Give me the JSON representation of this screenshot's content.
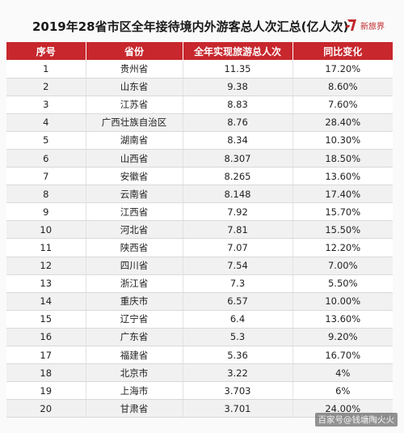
{
  "title": "2019年28省市区全年接待境内外游客总人次汇总(亿人次)",
  "logo_text": "新旅界",
  "headers": [
    "序号",
    "省份",
    "全年实现旅游总人次",
    "同比变化"
  ],
  "rows": [
    [
      "1",
      "贵州省",
      "11.35",
      "17.20%"
    ],
    [
      "2",
      "山东省",
      "9.38",
      "8.60%"
    ],
    [
      "3",
      "江苏省",
      "8.83",
      "7.60%"
    ],
    [
      "4",
      "广西壮族自治区",
      "8.76",
      "28.40%"
    ],
    [
      "5",
      "湖南省",
      "8.34",
      "10.30%"
    ],
    [
      "6",
      "山西省",
      "8.307",
      "18.50%"
    ],
    [
      "7",
      "安徽省",
      "8.265",
      "13.60%"
    ],
    [
      "8",
      "云南省",
      "8.148",
      "17.40%"
    ],
    [
      "9",
      "江西省",
      "7.92",
      "15.70%"
    ],
    [
      "10",
      "河北省",
      "7.81",
      "15.50%"
    ],
    [
      "11",
      "陕西省",
      "7.07",
      "12.20%"
    ],
    [
      "12",
      "四川省",
      "7.54",
      "7.00%"
    ],
    [
      "13",
      "浙江省",
      "7.3",
      "5.50%"
    ],
    [
      "14",
      "重庆市",
      "6.57",
      "10.00%"
    ],
    [
      "15",
      "辽宁省",
      "6.4",
      "13.60%"
    ],
    [
      "16",
      "广东省",
      "5.3",
      "9.20%"
    ],
    [
      "17",
      "福建省",
      "5.36",
      "16.70%"
    ],
    [
      "18",
      "北京市",
      "3.22",
      "4%"
    ],
    [
      "19",
      "上海市",
      "3.703",
      "6%"
    ],
    [
      "20",
      "甘肃省",
      "3.701",
      "24.00%"
    ]
  ],
  "watermark": "百家号@钱塘陶火火",
  "colors": {
    "header_bg": "#c7272d",
    "brand": "#c0292b"
  }
}
